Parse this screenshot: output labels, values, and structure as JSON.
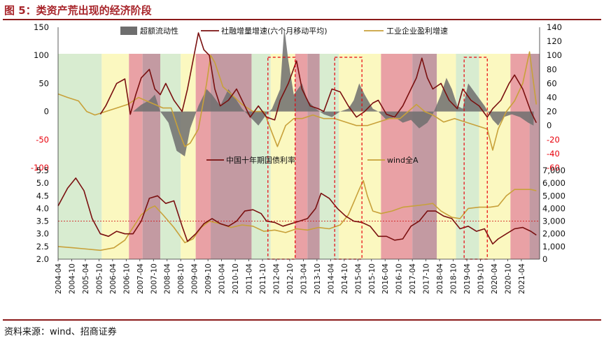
{
  "figure": {
    "title": "图 5：类资产荒出现的经济阶段",
    "source": "资料来源：wind、招商证券"
  },
  "colors": {
    "title_red": "#a8252b",
    "green_phase": "#d8ecd0",
    "yellow_phase": "#fbf8c0",
    "red_phase": "#e9a1a5",
    "maroon_phase": "#c39aa2",
    "excess_liquidity": "#6e6e6e",
    "social_financing": "#7a1010",
    "industrial_profit": "#c8a13a",
    "bond_yield": "#7a1010",
    "wind_a": "#c8a13a"
  },
  "chart_data": [
    {
      "type": "area",
      "panel": "top",
      "x_tick_labels": [
        "2004-04",
        "2004-10",
        "2005-04",
        "2005-10",
        "2006-04",
        "2006-10",
        "2007-04",
        "2007-10",
        "2008-04",
        "2008-10",
        "2009-04",
        "2009-10",
        "2010-04",
        "2010-10",
        "2011-04",
        "2011-10",
        "2012-04",
        "2012-10",
        "2013-04",
        "2013-10",
        "2014-04",
        "2014-10",
        "2015-04",
        "2015-10",
        "2016-04",
        "2016-10",
        "2017-04",
        "2017-10",
        "2018-04",
        "2018-10",
        "2019-04",
        "2019-10",
        "2020-04",
        "2020-10",
        "2021-04"
      ],
      "y_left_ticks": [
        "150",
        "100",
        "50",
        "0",
        "-50",
        "-100"
      ],
      "y_left_range": [
        -100,
        150
      ],
      "y_right_ticks": [
        "140",
        "120",
        "100",
        "80",
        "60",
        "40",
        "20",
        "0",
        "-20",
        "-40",
        "-60"
      ],
      "y_right_range": [
        -60,
        140
      ],
      "negative_tick_color": "#e8000b",
      "series": [
        {
          "name": "超额流动性",
          "axis": "left",
          "style": "area",
          "x": [
            2004.25,
            2005.0,
            2005.5,
            2006.0,
            2006.5,
            2007.0,
            2007.3,
            2007.6,
            2007.8,
            2008.0,
            2008.3,
            2008.6,
            2008.9,
            2009.1,
            2009.4,
            2009.7,
            2009.9,
            2010.2,
            2010.5,
            2010.8,
            2011.0,
            2011.3,
            2011.6,
            2011.9,
            2012.1,
            2012.4,
            2012.55,
            2012.7,
            2012.9,
            2013.2,
            2013.4,
            2013.7,
            2014.0,
            2014.3,
            2014.6,
            2014.9,
            2015.1,
            2015.3,
            2015.5,
            2015.8,
            2016.0,
            2016.3,
            2016.6,
            2016.9,
            2017.2,
            2017.5,
            2017.8,
            2018.0,
            2018.3,
            2018.5,
            2018.7,
            2018.9,
            2019.1,
            2019.3,
            2019.6,
            2019.9,
            2020.2,
            2020.4,
            2020.6,
            2020.9,
            2021.2,
            2021.5,
            2021.7
          ],
          "values": [
            0,
            0,
            0,
            0,
            0,
            0,
            12,
            20,
            30,
            0,
            -20,
            -70,
            -80,
            -30,
            10,
            40,
            30,
            10,
            40,
            20,
            5,
            -10,
            -25,
            -5,
            5,
            40,
            150,
            90,
            30,
            50,
            20,
            5,
            -5,
            -10,
            0,
            5,
            20,
            50,
            30,
            5,
            0,
            -15,
            -10,
            -20,
            -15,
            -30,
            -20,
            -5,
            30,
            60,
            40,
            10,
            5,
            50,
            30,
            10,
            -15,
            -25,
            -10,
            -5,
            -10,
            -20,
            -25
          ]
        },
        {
          "name": "社融增量增速(六个月移动平均)",
          "axis": "left",
          "style": "line",
          "x": [
            2005.8,
            2006.0,
            2006.2,
            2006.4,
            2006.7,
            2006.9,
            2007.1,
            2007.3,
            2007.6,
            2007.8,
            2008.0,
            2008.2,
            2008.5,
            2008.8,
            2009.0,
            2009.2,
            2009.4,
            2009.6,
            2009.8,
            2010.0,
            2010.2,
            2010.5,
            2010.8,
            2011.0,
            2011.3,
            2011.6,
            2011.9,
            2012.2,
            2012.4,
            2012.7,
            2013.0,
            2013.2,
            2013.5,
            2013.8,
            2014.0,
            2014.3,
            2014.6,
            2014.9,
            2015.2,
            2015.5,
            2015.8,
            2016.0,
            2016.3,
            2016.6,
            2016.9,
            2017.2,
            2017.4,
            2017.6,
            2017.8,
            2018.0,
            2018.3,
            2018.6,
            2018.9,
            2019.1,
            2019.4,
            2019.7,
            2020.0,
            2020.2,
            2020.5,
            2020.8,
            2021.0,
            2021.3,
            2021.6,
            2021.8
          ],
          "values": [
            -5,
            10,
            30,
            50,
            58,
            -5,
            30,
            60,
            75,
            40,
            30,
            50,
            20,
            0,
            40,
            90,
            140,
            110,
            100,
            40,
            10,
            20,
            40,
            20,
            -10,
            10,
            -10,
            -15,
            20,
            50,
            90,
            40,
            10,
            5,
            0,
            40,
            35,
            10,
            -10,
            0,
            15,
            20,
            -5,
            -10,
            10,
            40,
            60,
            95,
            60,
            40,
            50,
            20,
            5,
            40,
            20,
            10,
            -10,
            5,
            20,
            50,
            65,
            40,
            0,
            -20
          ]
        },
        {
          "name": "工业企业盈利增速",
          "axis": "right",
          "style": "line",
          "x": [
            2004.25,
            2004.6,
            2005.0,
            2005.3,
            2005.6,
            2006.0,
            2006.4,
            2006.8,
            2007.2,
            2007.5,
            2007.8,
            2008.1,
            2008.4,
            2008.7,
            2008.9,
            2009.1,
            2009.4,
            2009.7,
            2009.85,
            2010.0,
            2010.3,
            2010.6,
            2011.0,
            2011.4,
            2011.8,
            2012.1,
            2012.3,
            2012.6,
            2012.9,
            2013.2,
            2013.6,
            2014.0,
            2014.4,
            2014.8,
            2015.2,
            2015.6,
            2016.0,
            2016.4,
            2016.8,
            2017.1,
            2017.4,
            2017.7,
            2018.0,
            2018.4,
            2018.8,
            2019.2,
            2019.6,
            2020.0,
            2020.2,
            2020.4,
            2020.7,
            2021.0,
            2021.3,
            2021.55,
            2021.8
          ],
          "values": [
            45,
            40,
            35,
            20,
            15,
            20,
            25,
            30,
            40,
            35,
            30,
            25,
            25,
            -10,
            -30,
            -25,
            -5,
            60,
            100,
            90,
            55,
            45,
            30,
            20,
            20,
            -10,
            -30,
            0,
            10,
            10,
            15,
            10,
            10,
            5,
            0,
            0,
            5,
            10,
            10,
            20,
            30,
            20,
            15,
            5,
            10,
            5,
            0,
            -5,
            -35,
            -5,
            20,
            35,
            60,
            105,
            30
          ]
        }
      ]
    },
    {
      "type": "line",
      "panel": "bottom",
      "x_tick_labels": [
        "2004-04",
        "2004-10",
        "2005-04",
        "2005-10",
        "2006-04",
        "2006-10",
        "2007-04",
        "2007-10",
        "2008-04",
        "2008-10",
        "2009-04",
        "2009-10",
        "2010-04",
        "2010-10",
        "2011-04",
        "2011-10",
        "2012-04",
        "2012-10",
        "2013-04",
        "2013-10",
        "2014-04",
        "2014-10",
        "2015-04",
        "2015-10",
        "2016-04",
        "2016-10",
        "2017-04",
        "2017-10",
        "2018-04",
        "2018-10",
        "2019-04",
        "2019-10",
        "2020-04",
        "2020-10",
        "2021-04"
      ],
      "y_left_ticks": [
        "5.5",
        "5.0",
        "4.5",
        "4.0",
        "3.5",
        "3.0",
        "2.5",
        "2.0"
      ],
      "y_left_range": [
        2.0,
        5.5
      ],
      "y_right_ticks": [
        "7,000",
        "6,000",
        "5,000",
        "4,000",
        "3,000",
        "2,000",
        "1,000",
        "0"
      ],
      "y_right_range": [
        0,
        7000
      ],
      "reference_y": 3.5,
      "series": [
        {
          "name": "中国十年期国债利率",
          "axis": "left",
          "x": [
            2004.25,
            2004.6,
            2004.9,
            2005.2,
            2005.5,
            2005.8,
            2006.1,
            2006.4,
            2006.7,
            2007.0,
            2007.3,
            2007.6,
            2007.9,
            2008.2,
            2008.5,
            2008.8,
            2009.0,
            2009.3,
            2009.6,
            2009.9,
            2010.2,
            2010.5,
            2010.8,
            2011.1,
            2011.4,
            2011.7,
            2011.9,
            2012.2,
            2012.5,
            2012.8,
            2013.1,
            2013.4,
            2013.7,
            2013.9,
            2014.2,
            2014.5,
            2014.8,
            2015.1,
            2015.4,
            2015.7,
            2016.0,
            2016.3,
            2016.6,
            2016.9,
            2017.2,
            2017.5,
            2017.8,
            2018.1,
            2018.4,
            2018.7,
            2019.0,
            2019.3,
            2019.6,
            2019.9,
            2020.2,
            2020.4,
            2020.7,
            2021.0,
            2021.3,
            2021.6,
            2021.8
          ],
          "values": [
            4.1,
            4.8,
            5.2,
            4.7,
            3.6,
            3.0,
            2.9,
            3.1,
            3.0,
            3.0,
            3.5,
            4.4,
            4.5,
            4.2,
            4.3,
            3.3,
            2.7,
            3.0,
            3.4,
            3.6,
            3.4,
            3.3,
            3.5,
            3.9,
            3.95,
            3.8,
            3.5,
            3.45,
            3.3,
            3.4,
            3.5,
            3.6,
            4.0,
            4.6,
            4.4,
            4.0,
            3.7,
            3.5,
            3.45,
            3.3,
            2.9,
            2.9,
            2.75,
            2.8,
            3.3,
            3.5,
            3.9,
            3.9,
            3.7,
            3.6,
            3.2,
            3.3,
            3.1,
            3.2,
            2.6,
            2.8,
            3.0,
            3.2,
            3.25,
            3.1,
            2.95
          ]
        },
        {
          "name": "wind全A",
          "axis": "right",
          "x": [
            2004.25,
            2004.8,
            2005.3,
            2005.8,
            2006.3,
            2006.7,
            2007.0,
            2007.3,
            2007.6,
            2007.8,
            2008.1,
            2008.5,
            2008.9,
            2009.2,
            2009.5,
            2009.8,
            2010.2,
            2010.6,
            2011.0,
            2011.4,
            2011.8,
            2012.2,
            2012.6,
            2013.0,
            2013.4,
            2013.8,
            2014.2,
            2014.6,
            2014.9,
            2015.1,
            2015.3,
            2015.45,
            2015.6,
            2015.8,
            2016.1,
            2016.5,
            2016.9,
            2017.3,
            2017.7,
            2018.0,
            2018.3,
            2018.7,
            2019.0,
            2019.3,
            2019.7,
            2020.1,
            2020.4,
            2020.7,
            2021.0,
            2021.3,
            2021.6,
            2021.8
          ],
          "values": [
            1000,
            900,
            800,
            700,
            900,
            1500,
            2500,
            3500,
            4000,
            4200,
            3500,
            2500,
            1300,
            1600,
            2500,
            3000,
            2800,
            2500,
            2700,
            2600,
            2200,
            2300,
            2100,
            2400,
            2300,
            2500,
            2400,
            2700,
            3500,
            4500,
            5500,
            6200,
            5000,
            3800,
            3600,
            3800,
            4100,
            4200,
            4300,
            4400,
            3800,
            3300,
            3200,
            4000,
            4100,
            4100,
            4200,
            5000,
            5500,
            5500,
            5500,
            5400
          ]
        }
      ]
    }
  ],
  "phase_bands": [
    {
      "from": 2004.25,
      "to": 2005.85,
      "phase": "green"
    },
    {
      "from": 2005.85,
      "to": 2006.85,
      "phase": "yellow"
    },
    {
      "from": 2006.85,
      "to": 2007.35,
      "phase": "red"
    },
    {
      "from": 2007.35,
      "to": 2008.0,
      "phase": "maroon"
    },
    {
      "from": 2008.0,
      "to": 2008.75,
      "phase": "green"
    },
    {
      "from": 2008.75,
      "to": 2009.3,
      "phase": "yellow"
    },
    {
      "from": 2009.3,
      "to": 2009.85,
      "phase": "red"
    },
    {
      "from": 2009.85,
      "to": 2011.35,
      "phase": "maroon"
    },
    {
      "from": 2011.35,
      "to": 2012.05,
      "phase": "green"
    },
    {
      "from": 2012.05,
      "to": 2012.95,
      "phase": "yellow"
    },
    {
      "from": 2012.95,
      "to": 2013.4,
      "phase": "red"
    },
    {
      "from": 2013.4,
      "to": 2013.85,
      "phase": "maroon"
    },
    {
      "from": 2013.85,
      "to": 2014.55,
      "phase": "green"
    },
    {
      "from": 2014.55,
      "to": 2016.1,
      "phase": "yellow"
    },
    {
      "from": 2016.1,
      "to": 2017.25,
      "phase": "red"
    },
    {
      "from": 2017.25,
      "to": 2018.15,
      "phase": "maroon"
    },
    {
      "from": 2018.15,
      "to": 2018.85,
      "phase": "yellow"
    },
    {
      "from": 2018.85,
      "to": 2019.7,
      "phase": "green"
    },
    {
      "from": 2019.7,
      "to": 2020.85,
      "phase": "yellow"
    },
    {
      "from": 2020.85,
      "to": 2021.55,
      "phase": "red"
    },
    {
      "from": 2021.55,
      "to": 2021.92,
      "phase": "maroon"
    }
  ],
  "highlight_boxes": [
    {
      "from": 2011.95,
      "to": 2012.95
    },
    {
      "from": 2014.4,
      "to": 2015.4
    },
    {
      "from": 2019.15,
      "to": 2020.0
    }
  ]
}
